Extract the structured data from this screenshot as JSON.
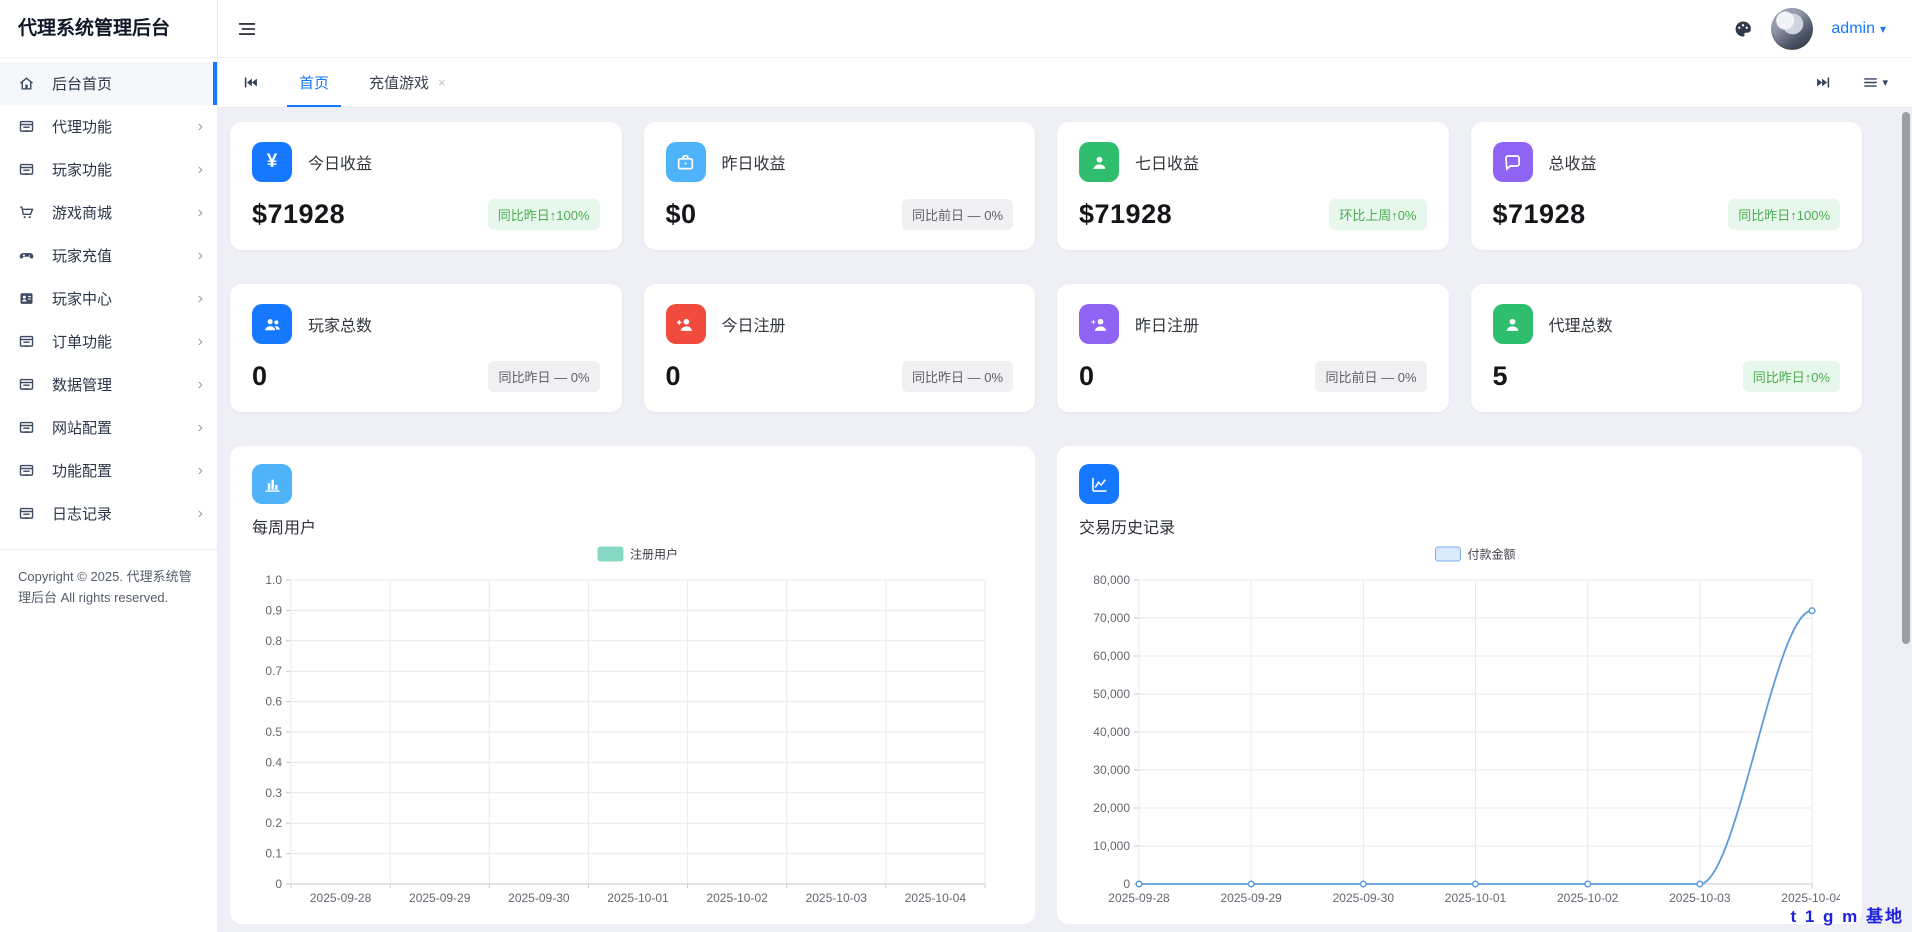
{
  "sidebar": {
    "title": "代理系统管理后台",
    "items": [
      {
        "label": "后台首页",
        "icon": "home-icon",
        "active": true,
        "expandable": false
      },
      {
        "label": "代理功能",
        "icon": "panel-icon",
        "active": false,
        "expandable": true
      },
      {
        "label": "玩家功能",
        "icon": "panel-icon",
        "active": false,
        "expandable": true
      },
      {
        "label": "游戏商城",
        "icon": "cart-icon",
        "active": false,
        "expandable": true
      },
      {
        "label": "玩家充值",
        "icon": "gamepad-icon",
        "active": false,
        "expandable": true
      },
      {
        "label": "玩家中心",
        "icon": "person-card-icon",
        "active": false,
        "expandable": true
      },
      {
        "label": "订单功能",
        "icon": "panel-icon",
        "active": false,
        "expandable": true
      },
      {
        "label": "数据管理",
        "icon": "panel-icon",
        "active": false,
        "expandable": true
      },
      {
        "label": "网站配置",
        "icon": "panel-icon",
        "active": false,
        "expandable": true
      },
      {
        "label": "功能配置",
        "icon": "panel-icon",
        "active": false,
        "expandable": true
      },
      {
        "label": "日志记录",
        "icon": "panel-icon",
        "active": false,
        "expandable": true
      }
    ],
    "copyright": "Copyright © 2025. 代理系统管理后台 All rights reserved."
  },
  "header": {
    "user": "admin"
  },
  "tabs": {
    "items": [
      {
        "label": "首页",
        "active": true,
        "closable": false
      },
      {
        "label": "充值游戏",
        "active": false,
        "closable": true
      }
    ]
  },
  "stats": {
    "rows": [
      [
        {
          "title": "今日收益",
          "value": "$71928",
          "icon": "yuan-icon",
          "color": "#1677ff",
          "badge": {
            "text": "同比昨日↑100%",
            "type": "success"
          }
        },
        {
          "title": "昨日收益",
          "value": "$0",
          "icon": "briefcase-icon",
          "color": "#4eb3f8",
          "badge": {
            "text": "同比前日 — 0%",
            "type": "neutral"
          }
        },
        {
          "title": "七日收益",
          "value": "$71928",
          "icon": "person-icon",
          "color": "#2fbe6e",
          "badge": {
            "text": "环比上周↑0%",
            "type": "success"
          }
        },
        {
          "title": "总收益",
          "value": "$71928",
          "icon": "chat-icon",
          "color": "#8f63f4",
          "badge": {
            "text": "同比昨日↑100%",
            "type": "success"
          }
        }
      ],
      [
        {
          "title": "玩家总数",
          "value": "0",
          "icon": "people-icon",
          "color": "#1677ff",
          "badge": {
            "text": "同比昨日 — 0%",
            "type": "neutral"
          }
        },
        {
          "title": "今日注册",
          "value": "0",
          "icon": "person-plus-icon",
          "color": "#f04b3c",
          "badge": {
            "text": "同比昨日 — 0%",
            "type": "neutral"
          }
        },
        {
          "title": "昨日注册",
          "value": "0",
          "icon": "person-star-icon",
          "color": "#8f63f4",
          "badge": {
            "text": "同比前日 — 0%",
            "type": "neutral"
          }
        },
        {
          "title": "代理总数",
          "value": "5",
          "icon": "person-icon",
          "color": "#2fbe6e",
          "badge": {
            "text": "同比昨日↑0%",
            "type": "success"
          }
        }
      ]
    ]
  },
  "chart_data": [
    {
      "type": "line",
      "title": "每周用户",
      "icon": "bar-chart-icon",
      "icon_color": "#4eb3f8",
      "legend": [
        {
          "label": "注册用户",
          "swatch_fill": "#86d7c3",
          "swatch_border": "#86d7c3"
        }
      ],
      "legend_position": "top",
      "categories": [
        "2025-09-28",
        "2025-09-29",
        "2025-09-30",
        "2025-10-01",
        "2025-10-02",
        "2025-10-03",
        "2025-10-04"
      ],
      "series": [
        {
          "name": "注册用户",
          "values": []
        }
      ],
      "ylim": [
        0,
        1
      ],
      "y_ticks": [
        "1.0",
        "0.9",
        "0.8",
        "0.7",
        "0.6",
        "0.5",
        "0.4",
        "0.3",
        "0.2",
        "0.1",
        "0"
      ],
      "boundary_gap": true,
      "grid": true,
      "line_color": "#86d7c3"
    },
    {
      "type": "line",
      "title": "交易历史记录",
      "icon": "line-chart-icon",
      "icon_color": "#1677ff",
      "legend": [
        {
          "label": "付款金额",
          "swatch_fill": "#d8eafc",
          "swatch_border": "#7fb1e3"
        }
      ],
      "legend_position": "top",
      "categories": [
        "2025-09-28",
        "2025-09-29",
        "2025-09-30",
        "2025-10-01",
        "2025-10-02",
        "2025-10-03",
        "2025-10-04"
      ],
      "series": [
        {
          "name": "付款金额",
          "values": [
            0,
            0,
            0,
            0,
            0,
            0,
            71928
          ]
        }
      ],
      "ylim": [
        0,
        80000
      ],
      "y_ticks": [
        "80,000",
        "70,000",
        "60,000",
        "50,000",
        "40,000",
        "30,000",
        "20,000",
        "10,000",
        "0"
      ],
      "boundary_gap": false,
      "grid": true,
      "line_color": "#5d9cdb"
    }
  ],
  "watermark": "t 1 g m 基地",
  "colors": {
    "primary": "#1677ff",
    "badge_success_text": "#49ad52",
    "badge_success_bg": "#e8f7ec",
    "badge_neutral_text": "#5f6368",
    "badge_neutral_bg": "#f0f0f2",
    "content_bg": "#eef0f5",
    "gridline": "#e8eaee",
    "axis": "#c6c9d0",
    "axis_label": "#63676e"
  }
}
